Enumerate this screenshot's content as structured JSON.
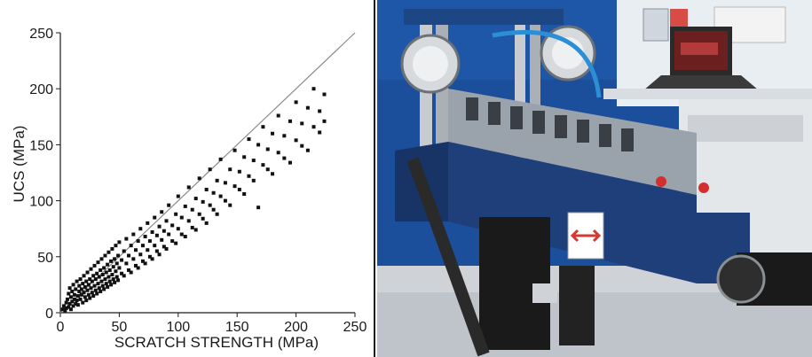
{
  "chart_data": {
    "type": "scatter",
    "xlabel": "SCRATCH STRENGTH (MPa)",
    "ylabel": "UCS (MPa)",
    "xlim": [
      0,
      250
    ],
    "ylim": [
      0,
      250
    ],
    "xticks": [
      "0",
      "50",
      "100",
      "150",
      "200",
      "250"
    ],
    "yticks": [
      "0",
      "50",
      "100",
      "150",
      "200",
      "250"
    ],
    "grid": false,
    "trend_line": {
      "x": [
        0,
        250
      ],
      "y": [
        0,
        250
      ]
    },
    "points": [
      [
        2,
        3
      ],
      [
        3,
        6
      ],
      [
        4,
        2
      ],
      [
        5,
        9
      ],
      [
        5,
        4
      ],
      [
        6,
        12
      ],
      [
        7,
        5
      ],
      [
        7,
        17
      ],
      [
        8,
        8
      ],
      [
        8,
        22
      ],
      [
        9,
        3
      ],
      [
        9,
        14
      ],
      [
        10,
        10
      ],
      [
        10,
        19
      ],
      [
        11,
        6
      ],
      [
        11,
        25
      ],
      [
        12,
        12
      ],
      [
        12,
        16
      ],
      [
        13,
        8
      ],
      [
        13,
        21
      ],
      [
        14,
        11
      ],
      [
        14,
        28
      ],
      [
        15,
        15
      ],
      [
        15,
        7
      ],
      [
        16,
        19
      ],
      [
        16,
        24
      ],
      [
        17,
        12
      ],
      [
        17,
        30
      ],
      [
        18,
        16
      ],
      [
        18,
        21
      ],
      [
        19,
        9
      ],
      [
        19,
        26
      ],
      [
        20,
        18
      ],
      [
        20,
        33
      ],
      [
        21,
        14
      ],
      [
        21,
        23
      ],
      [
        22,
        28
      ],
      [
        22,
        11
      ],
      [
        23,
        20
      ],
      [
        23,
        36
      ],
      [
        24,
        16
      ],
      [
        24,
        25
      ],
      [
        25,
        30
      ],
      [
        25,
        13
      ],
      [
        26,
        22
      ],
      [
        26,
        39
      ],
      [
        27,
        18
      ],
      [
        27,
        28
      ],
      [
        28,
        33
      ],
      [
        28,
        15
      ],
      [
        29,
        24
      ],
      [
        29,
        42
      ],
      [
        30,
        20
      ],
      [
        30,
        30
      ],
      [
        31,
        35
      ],
      [
        31,
        17
      ],
      [
        32,
        26
      ],
      [
        32,
        45
      ],
      [
        33,
        22
      ],
      [
        33,
        32
      ],
      [
        34,
        38
      ],
      [
        34,
        19
      ],
      [
        35,
        28
      ],
      [
        35,
        48
      ],
      [
        36,
        24
      ],
      [
        36,
        34
      ],
      [
        37,
        40
      ],
      [
        37,
        21
      ],
      [
        38,
        30
      ],
      [
        38,
        51
      ],
      [
        39,
        26
      ],
      [
        39,
        36
      ],
      [
        40,
        43
      ],
      [
        40,
        23
      ],
      [
        41,
        32
      ],
      [
        41,
        54
      ],
      [
        42,
        28
      ],
      [
        42,
        38
      ],
      [
        43,
        46
      ],
      [
        43,
        25
      ],
      [
        44,
        34
      ],
      [
        44,
        57
      ],
      [
        45,
        30
      ],
      [
        45,
        41
      ],
      [
        46,
        48
      ],
      [
        46,
        27
      ],
      [
        47,
        37
      ],
      [
        47,
        60
      ],
      [
        48,
        32
      ],
      [
        48,
        44
      ],
      [
        49,
        51
      ],
      [
        49,
        29
      ],
      [
        50,
        40
      ],
      [
        50,
        63
      ],
      [
        52,
        35
      ],
      [
        52,
        47
      ],
      [
        54,
        55
      ],
      [
        54,
        33
      ],
      [
        56,
        44
      ],
      [
        56,
        66
      ],
      [
        58,
        38
      ],
      [
        58,
        51
      ],
      [
        60,
        60
      ],
      [
        60,
        36
      ],
      [
        62,
        48
      ],
      [
        62,
        70
      ],
      [
        64,
        42
      ],
      [
        64,
        56
      ],
      [
        66,
        64
      ],
      [
        66,
        40
      ],
      [
        68,
        52
      ],
      [
        68,
        75
      ],
      [
        70,
        46
      ],
      [
        70,
        60
      ],
      [
        72,
        68
      ],
      [
        72,
        44
      ],
      [
        74,
        56
      ],
      [
        74,
        80
      ],
      [
        76,
        50
      ],
      [
        76,
        64
      ],
      [
        78,
        72
      ],
      [
        78,
        48
      ],
      [
        80,
        60
      ],
      [
        80,
        85
      ],
      [
        82,
        55
      ],
      [
        82,
        69
      ],
      [
        84,
        77
      ],
      [
        84,
        52
      ],
      [
        86,
        65
      ],
      [
        86,
        90
      ],
      [
        88,
        59
      ],
      [
        88,
        73
      ],
      [
        90,
        82
      ],
      [
        90,
        57
      ],
      [
        92,
        70
      ],
      [
        92,
        96
      ],
      [
        95,
        64
      ],
      [
        95,
        78
      ],
      [
        98,
        88
      ],
      [
        98,
        62
      ],
      [
        100,
        75
      ],
      [
        100,
        104
      ],
      [
        103,
        70
      ],
      [
        103,
        85
      ],
      [
        106,
        95
      ],
      [
        106,
        68
      ],
      [
        109,
        82
      ],
      [
        109,
        112
      ],
      [
        112,
        76
      ],
      [
        112,
        92
      ],
      [
        115,
        102
      ],
      [
        115,
        74
      ],
      [
        118,
        88
      ],
      [
        118,
        120
      ],
      [
        121,
        84
      ],
      [
        121,
        99
      ],
      [
        124,
        110
      ],
      [
        124,
        80
      ],
      [
        127,
        96
      ],
      [
        127,
        128
      ],
      [
        130,
        92
      ],
      [
        130,
        107
      ],
      [
        133,
        118
      ],
      [
        133,
        88
      ],
      [
        136,
        104
      ],
      [
        136,
        137
      ],
      [
        140,
        100
      ],
      [
        140,
        116
      ],
      [
        144,
        128
      ],
      [
        144,
        96
      ],
      [
        148,
        113
      ],
      [
        148,
        145
      ],
      [
        152,
        110
      ],
      [
        152,
        126
      ],
      [
        156,
        139
      ],
      [
        156,
        106
      ],
      [
        160,
        122
      ],
      [
        160,
        155
      ],
      [
        164,
        118
      ],
      [
        164,
        136
      ],
      [
        168,
        150
      ],
      [
        168,
        94
      ],
      [
        172,
        132
      ],
      [
        172,
        166
      ],
      [
        176,
        128
      ],
      [
        176,
        146
      ],
      [
        180,
        160
      ],
      [
        180,
        124
      ],
      [
        185,
        143
      ],
      [
        185,
        176
      ],
      [
        190,
        138
      ],
      [
        190,
        158
      ],
      [
        195,
        171
      ],
      [
        195,
        134
      ],
      [
        200,
        154
      ],
      [
        200,
        188
      ],
      [
        205,
        149
      ],
      [
        205,
        169
      ],
      [
        210,
        183
      ],
      [
        210,
        145
      ],
      [
        215,
        166
      ],
      [
        215,
        200
      ],
      [
        220,
        161
      ],
      [
        220,
        180
      ],
      [
        224,
        195
      ],
      [
        224,
        171
      ]
    ]
  },
  "photo": {
    "description_free": true
  }
}
